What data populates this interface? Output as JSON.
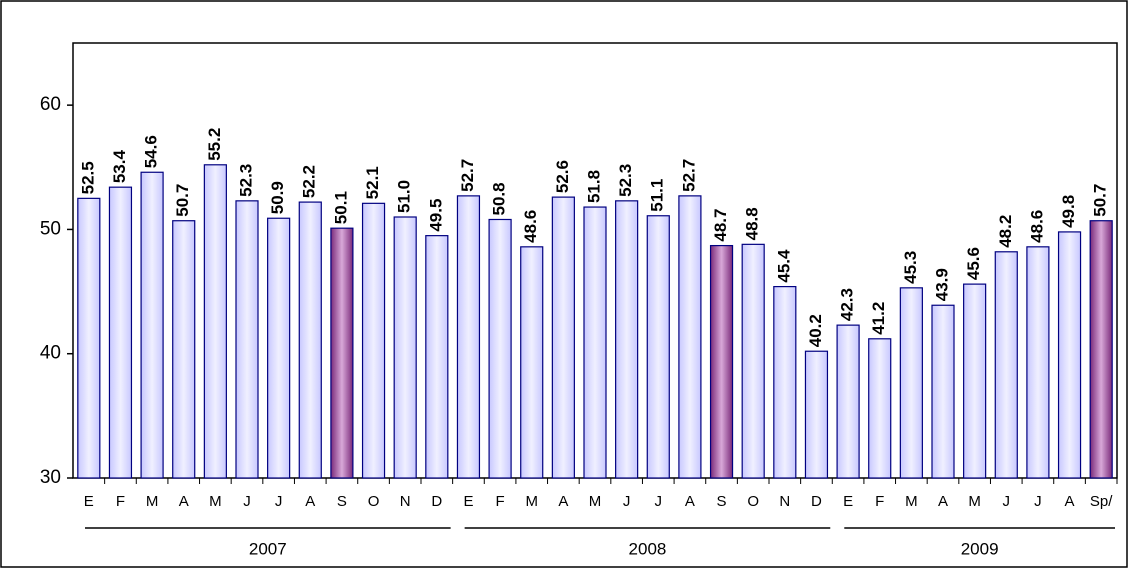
{
  "chart_data": {
    "type": "bar",
    "groups": [
      {
        "name": "2007",
        "categories": [
          "E",
          "F",
          "M",
          "A",
          "M",
          "J",
          "J",
          "A",
          "S",
          "O",
          "N",
          "D"
        ],
        "values": [
          52.5,
          53.4,
          54.6,
          50.7,
          55.2,
          52.3,
          50.9,
          52.2,
          50.1,
          52.1,
          51.0,
          49.5
        ],
        "value_labels": [
          "52.5",
          "53.4",
          "54.6",
          "50.7",
          "55.2",
          "52.3",
          "50.9",
          "52.2",
          "50.1",
          "52.1",
          "51.0",
          "49.5"
        ],
        "colors": [
          "#c8c8ff",
          "#c8c8ff",
          "#c8c8ff",
          "#c8c8ff",
          "#c8c8ff",
          "#c8c8ff",
          "#c8c8ff",
          "#c8c8ff",
          "#7a2a7a",
          "#c8c8ff",
          "#c8c8ff",
          "#c8c8ff"
        ]
      },
      {
        "name": "2008",
        "categories": [
          "E",
          "F",
          "M",
          "A",
          "M",
          "J",
          "J",
          "A",
          "S",
          "O",
          "N",
          "D"
        ],
        "values": [
          52.7,
          50.8,
          48.6,
          52.6,
          51.8,
          52.3,
          51.1,
          52.7,
          48.7,
          48.8,
          45.4,
          40.2
        ],
        "value_labels": [
          "52.7",
          "50.8",
          "48.6",
          "52.6",
          "51.8",
          "52.3",
          "51.1",
          "52.7",
          "48.7",
          "48.8",
          "45.4",
          "40.2"
        ],
        "colors": [
          "#c8c8ff",
          "#c8c8ff",
          "#c8c8ff",
          "#c8c8ff",
          "#c8c8ff",
          "#c8c8ff",
          "#c8c8ff",
          "#c8c8ff",
          "#7a2a7a",
          "#c8c8ff",
          "#c8c8ff",
          "#c8c8ff"
        ]
      },
      {
        "name": "2009",
        "categories": [
          "E",
          "F",
          "M",
          "A",
          "M",
          "J",
          "J",
          "A",
          "Sp/"
        ],
        "values": [
          42.3,
          41.2,
          45.3,
          43.9,
          45.6,
          48.2,
          48.6,
          49.8,
          50.7
        ],
        "value_labels": [
          "42.3",
          "41.2",
          "45.3",
          "43.9",
          "45.6",
          "48.2",
          "48.6",
          "49.8",
          "50.7"
        ],
        "colors": [
          "#c8c8ff",
          "#c8c8ff",
          "#c8c8ff",
          "#c8c8ff",
          "#c8c8ff",
          "#c8c8ff",
          "#c8c8ff",
          "#c8c8ff",
          "#7a2a7a"
        ]
      }
    ],
    "ylim": [
      30,
      65
    ],
    "yticks": [
      30,
      40,
      50,
      60
    ],
    "grid": false,
    "outline": "#000080"
  }
}
